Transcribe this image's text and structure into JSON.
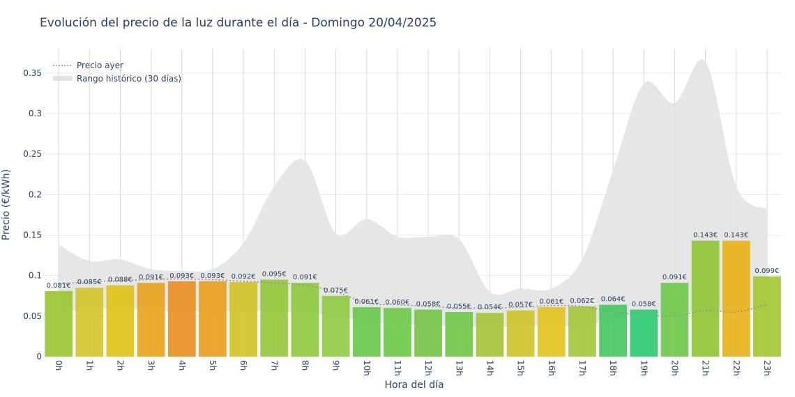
{
  "chart_data": {
    "type": "bar",
    "title": "Evolución del precio de la luz durante el día - Domingo 20/04/2025",
    "xlabel": "Hora del día",
    "ylabel": "Precio (€/kWh)",
    "ylim": [
      0,
      0.38
    ],
    "y_ticks": [
      {
        "value": 0,
        "label": "0"
      },
      {
        "value": 0.05,
        "label": "0.05"
      },
      {
        "value": 0.1,
        "label": "0.1"
      },
      {
        "value": 0.15,
        "label": "0.15"
      },
      {
        "value": 0.2,
        "label": "0.2"
      },
      {
        "value": 0.25,
        "label": "0.25"
      },
      {
        "value": 0.3,
        "label": "0.3"
      },
      {
        "value": 0.35,
        "label": "0.35"
      }
    ],
    "categories": [
      "0h",
      "1h",
      "2h",
      "3h",
      "4h",
      "5h",
      "6h",
      "7h",
      "8h",
      "9h",
      "10h",
      "11h",
      "12h",
      "13h",
      "14h",
      "15h",
      "16h",
      "17h",
      "18h",
      "19h",
      "20h",
      "21h",
      "22h",
      "23h"
    ],
    "values": [
      0.081,
      0.085,
      0.088,
      0.091,
      0.093,
      0.093,
      0.092,
      0.095,
      0.091,
      0.075,
      0.061,
      0.06,
      0.058,
      0.055,
      0.054,
      0.057,
      0.061,
      0.062,
      0.064,
      0.058,
      0.091,
      0.143,
      0.143,
      0.099
    ],
    "value_labels": [
      "0.081€",
      "0.085€",
      "0.088€",
      "0.091€",
      "0.093€",
      "0.093€",
      "0.092€",
      "0.095€",
      "0.091€",
      "0.075€",
      "0.061€",
      "0.060€",
      "0.058€",
      "0.055€",
      "0.054€",
      "0.057€",
      "0.061€",
      "0.062€",
      "0.064€",
      "0.058€",
      "0.091€",
      "0.143€",
      "0.143€",
      "0.099€"
    ],
    "bar_colors": [
      "#9cc534",
      "#d2c42b",
      "#e2c319",
      "#e9a41c",
      "#ea8f26",
      "#e9a021",
      "#d4c327",
      "#97c83b",
      "#8fca3f",
      "#91ca45",
      "#6ac94b",
      "#6ec94b",
      "#76c64b",
      "#72c74b",
      "#a7c43a",
      "#cdc52b",
      "#e4c41f",
      "#a3c83b",
      "#48c763",
      "#2ecc71",
      "#6fc94a",
      "#93c536",
      "#e8b21b",
      "#a5c833"
    ],
    "series": [
      {
        "name": "Precio ayer",
        "type": "line",
        "style": "dotted",
        "color": "#8a8f98",
        "values": [
          0.09,
          0.092,
          0.094,
          0.095,
          0.096,
          0.095,
          0.093,
          0.091,
          0.088,
          0.08,
          0.066,
          0.064,
          0.062,
          0.06,
          0.06,
          0.061,
          0.063,
          0.062,
          0.055,
          0.052,
          0.05,
          0.057,
          0.055,
          0.064
        ]
      },
      {
        "name": "Rango histórico (30 días)",
        "type": "area",
        "color": "#e5e5e5",
        "upper": [
          0.138,
          0.118,
          0.12,
          0.108,
          0.106,
          0.108,
          0.14,
          0.21,
          0.242,
          0.152,
          0.17,
          0.148,
          0.148,
          0.145,
          0.08,
          0.084,
          0.084,
          0.12,
          0.23,
          0.337,
          0.313,
          0.364,
          0.21,
          0.182
        ],
        "lower": [
          0.055,
          0.058,
          0.06,
          0.057,
          0.056,
          0.056,
          0.056,
          0.056,
          0.054,
          0.05,
          0.043,
          0.04,
          0.039,
          0.037,
          0.037,
          0.037,
          0.038,
          0.038,
          0.046,
          0.052,
          0.052,
          0.057,
          0.056,
          0.063
        ]
      }
    ],
    "legend_position": "top-left",
    "grid": true
  }
}
